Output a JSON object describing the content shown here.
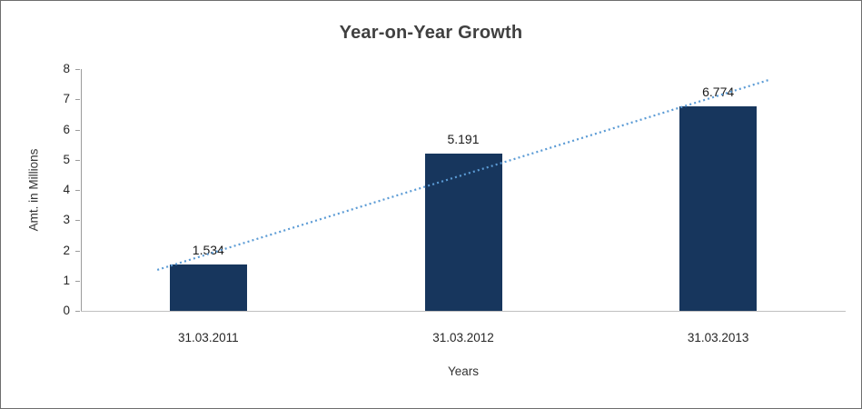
{
  "chart_data": {
    "type": "bar",
    "title": "Year-on-Year Growth",
    "categories": [
      "31.03.2011",
      "31.03.2012",
      "31.03.2013"
    ],
    "values": [
      1.534,
      5.191,
      6.774
    ],
    "data_labels": [
      "1.534",
      "5.191",
      "6.774"
    ],
    "xlabel": "Years",
    "ylabel": "Amt. in Millions",
    "ylim": [
      0,
      8
    ],
    "ytick_step": 1,
    "yticks": [
      "0",
      "1",
      "2",
      "3",
      "4",
      "5",
      "6",
      "7",
      "8"
    ],
    "grid": false,
    "legend": "none",
    "bar_color": "#17365D",
    "trendline": {
      "type": "linear",
      "style": "dotted",
      "color": "#5B9BD5"
    }
  }
}
